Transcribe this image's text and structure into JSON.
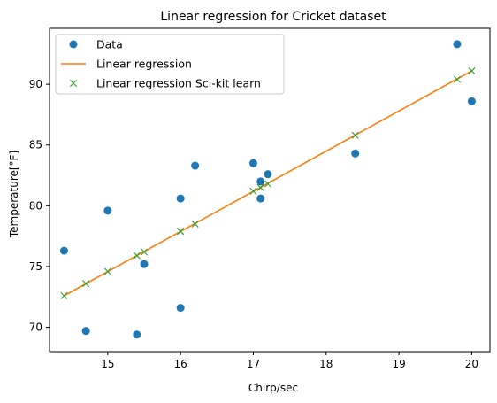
{
  "chart_data": {
    "type": "scatter",
    "title": "Linear regression for Cricket dataset",
    "xlabel": "Chirp/sec",
    "ylabel": "Temperature[°F]",
    "xlim": [
      14.2,
      20.25
    ],
    "ylim": [
      68.0,
      94.6
    ],
    "xticks": [
      15,
      16,
      17,
      18,
      19,
      20
    ],
    "yticks": [
      70,
      75,
      80,
      85,
      90
    ],
    "grid": false,
    "legend_position": "top-left",
    "series": [
      {
        "name": "Data",
        "kind": "scatter",
        "marker": "circle",
        "color": "#1f77b4",
        "x": [
          20.0,
          16.0,
          19.8,
          18.4,
          17.1,
          15.5,
          14.7,
          17.1,
          15.4,
          16.2,
          15.0,
          17.2,
          16.0,
          17.0,
          14.4
        ],
        "y": [
          88.6,
          71.6,
          93.3,
          84.3,
          80.6,
          75.2,
          69.7,
          82.0,
          69.4,
          83.3,
          79.6,
          82.6,
          80.6,
          83.5,
          76.3
        ]
      },
      {
        "name": "Linear regression",
        "kind": "line",
        "color": "#ff7f0e",
        "x": [
          14.4,
          20.0
        ],
        "y": [
          72.6,
          91.1
        ]
      },
      {
        "name": "Linear regression Sci-kit learn",
        "kind": "scatter",
        "marker": "x",
        "color": "#2ca02c",
        "x": [
          20.0,
          16.0,
          19.8,
          18.4,
          17.1,
          15.5,
          14.7,
          17.1,
          15.4,
          16.2,
          15.0,
          17.2,
          16.0,
          17.0,
          14.4
        ],
        "y": [
          91.1,
          77.9,
          90.4,
          85.8,
          81.5,
          76.2,
          73.6,
          81.5,
          75.9,
          78.5,
          74.6,
          81.8,
          77.9,
          81.2,
          72.6
        ]
      }
    ]
  }
}
